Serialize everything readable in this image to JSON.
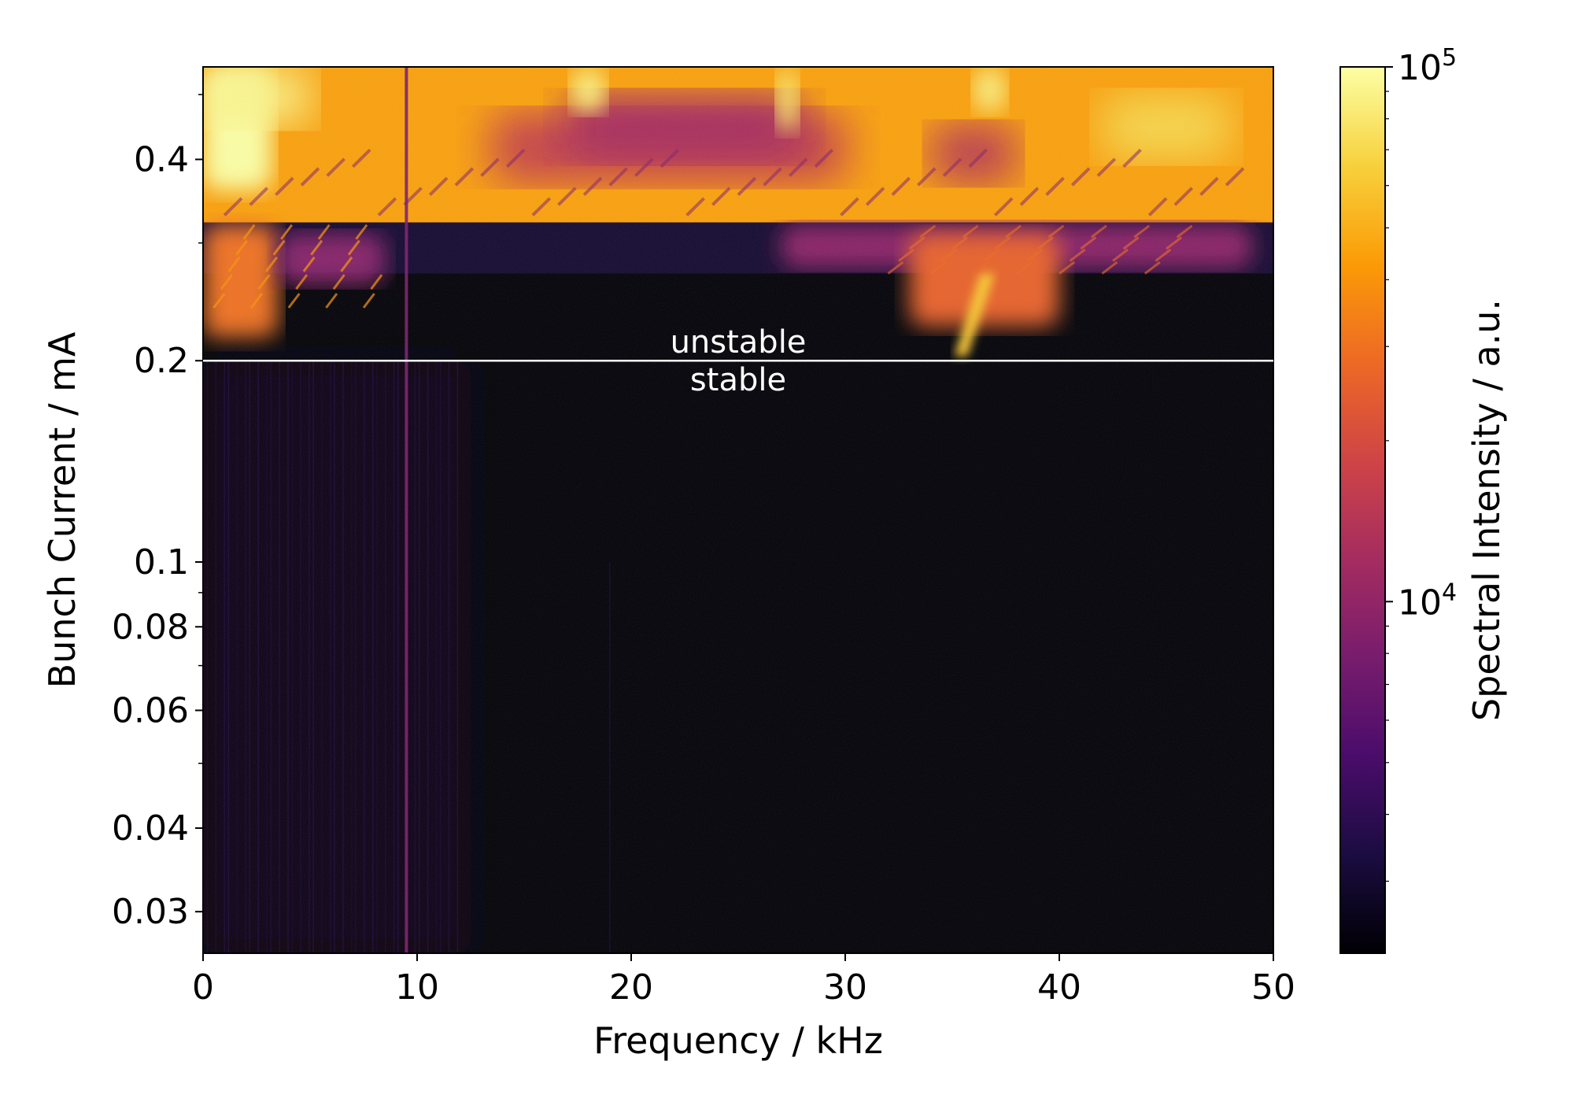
{
  "chart_data": {
    "type": "heatmap",
    "title": "",
    "xlabel": "Frequency / kHz",
    "ylabel": "Bunch Current / mA",
    "xlim": [
      0,
      50
    ],
    "ylim": [
      0.026,
      0.55
    ],
    "yscale": "log",
    "x_ticks": [
      {
        "value": 0,
        "label": "0"
      },
      {
        "value": 10,
        "label": "10"
      },
      {
        "value": 20,
        "label": "20"
      },
      {
        "value": 30,
        "label": "30"
      },
      {
        "value": 40,
        "label": "40"
      },
      {
        "value": 50,
        "label": "50"
      }
    ],
    "y_ticks": [
      {
        "value": 0.03,
        "label": "0.03"
      },
      {
        "value": 0.04,
        "label": "0.04"
      },
      {
        "value": 0.06,
        "label": "0.06"
      },
      {
        "value": 0.08,
        "label": "0.08"
      },
      {
        "value": 0.1,
        "label": "0.1"
      },
      {
        "value": 0.2,
        "label": "0.2"
      },
      {
        "value": 0.4,
        "label": "0.4"
      }
    ],
    "y_minor_ticks": [
      0.05,
      0.07,
      0.09,
      0.3,
      0.5
    ],
    "threshold": {
      "value": 0.2,
      "label_above": "unstable",
      "label_below": "stable",
      "label_x": 25
    },
    "colorbar": {
      "label": "Spectral Intensity / a.u.",
      "scale": "log",
      "colormap": "inferno",
      "range": [
        2200,
        100000
      ],
      "ticks": [
        {
          "value": 100000,
          "base": "10",
          "exp": "5"
        },
        {
          "value": 10000,
          "base": "10",
          "exp": "4"
        }
      ]
    },
    "features": [
      {
        "name": "line-9.5kHz",
        "x": 9.5,
        "y_from": 0.026,
        "y_to": 0.55,
        "intensity": 8000
      },
      {
        "name": "onset-35kHz",
        "x_from": 35.2,
        "x_to": 36.8,
        "y_from": 0.205,
        "y_to": 0.28,
        "intensity": 60000
      }
    ],
    "grid": false,
    "legend": "none"
  },
  "colors": {
    "inferno": [
      "#000004",
      "#1b0c41",
      "#4a0c6b",
      "#781c6d",
      "#a52c60",
      "#cf4446",
      "#ed6925",
      "#fb9b06",
      "#f7d13d",
      "#fcffa4"
    ],
    "threshold_line": "#ffffff",
    "annotation_text": "#ffffff"
  }
}
